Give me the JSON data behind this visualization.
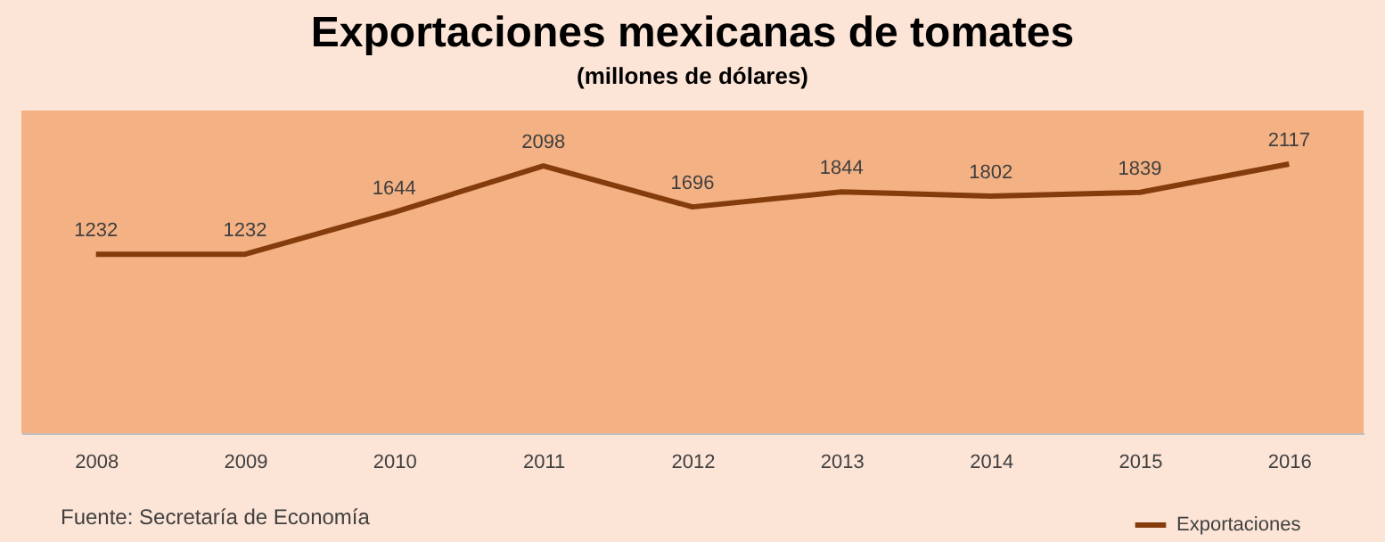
{
  "chart_data": {
    "type": "line",
    "title": "Exportaciones mexicanas de tomates",
    "subtitle": "(millones de dólares)",
    "categories": [
      "2008",
      "2009",
      "2010",
      "2011",
      "2012",
      "2013",
      "2014",
      "2015",
      "2016"
    ],
    "series": [
      {
        "name": "Exportaciones",
        "color": "#843c0c",
        "values": [
          1232,
          1232,
          1644,
          2098,
          1696,
          1844,
          1802,
          1839,
          2117
        ]
      }
    ],
    "data_labels": true,
    "grid": false,
    "legend": "bottom right",
    "marker": "none",
    "line_style": "solid",
    "annotations": [
      "Fuente: Secretaría de Economía"
    ]
  }
}
